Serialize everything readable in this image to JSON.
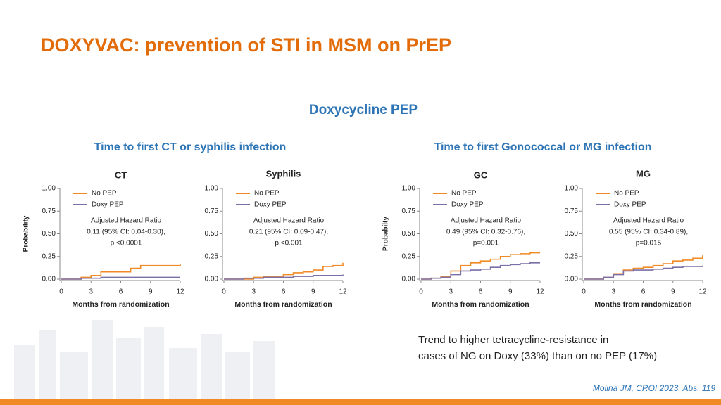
{
  "slide": {
    "title": "DOXYVAC: prevention of STI in MSM on PrEP",
    "subtitle": "Doxycycline PEP",
    "sections": [
      "Time to first CT or syphilis infection",
      "Time to first Gonococcal or MG infection"
    ],
    "note": [
      "Trend to higher tetracycline-resistance in",
      "cases of NG on Doxy (33%) than on no PEP (17%)"
    ],
    "citation": "Molina JM, CROI 2023, Abs. 119"
  },
  "chart_data": [
    {
      "type": "line",
      "step": true,
      "title": "CT",
      "ylabel": "Probability",
      "xlabel": "Months from randomization",
      "annotation": [
        "Adjusted Hazard Ratio",
        "0.11 (95% CI: 0.04-0.30),",
        "p <0.0001"
      ],
      "x": [
        0,
        1,
        2,
        3,
        4,
        5,
        6,
        7,
        8,
        9,
        10,
        11,
        12
      ],
      "series": [
        {
          "name": "No PEP",
          "color": "#f08a24",
          "values": [
            0,
            0,
            0.02,
            0.04,
            0.08,
            0.08,
            0.08,
            0.12,
            0.15,
            0.15,
            0.15,
            0.15,
            0.17
          ]
        },
        {
          "name": "Doxy PEP",
          "color": "#7b6fa8",
          "values": [
            0,
            0,
            0.01,
            0.01,
            0.02,
            0.02,
            0.02,
            0.02,
            0.02,
            0.02,
            0.02,
            0.02,
            0.02
          ]
        }
      ],
      "xlim": [
        0,
        12
      ],
      "xticks": [
        0,
        3,
        6,
        9,
        12
      ],
      "ylim": [
        0,
        1
      ],
      "yticks": [
        {
          "value": 0,
          "label": "0.00"
        },
        {
          "value": 0.25,
          "label": "0.25"
        },
        {
          "value": 0.5,
          "label": "0.50"
        },
        {
          "value": 0.75,
          "label": "0.75"
        },
        {
          "value": 1,
          "label": "1.00"
        }
      ],
      "legend": "upper left"
    },
    {
      "type": "line",
      "step": true,
      "title": "Syphilis",
      "xlabel": "Months from randomization",
      "annotation": [
        "Adjusted Hazard Ratio",
        "0.21 (95% CI: 0.09-0.47),",
        "p <0.001"
      ],
      "x": [
        0,
        1,
        2,
        3,
        4,
        5,
        6,
        7,
        8,
        9,
        10,
        11,
        12
      ],
      "series": [
        {
          "name": "No PEP",
          "color": "#f08a24",
          "values": [
            0,
            0,
            0,
            0.02,
            0.03,
            0.03,
            0.05,
            0.07,
            0.08,
            0.1,
            0.14,
            0.15,
            0.18
          ]
        },
        {
          "name": "Doxy PEP",
          "color": "#7b6fa8",
          "values": [
            0,
            0,
            0.01,
            0.01,
            0.02,
            0.02,
            0.02,
            0.03,
            0.03,
            0.04,
            0.04,
            0.04,
            0.05
          ]
        }
      ],
      "xlim": [
        0,
        12
      ],
      "xticks": [
        0,
        3,
        6,
        9,
        12
      ],
      "ylim": [
        0,
        1
      ],
      "yticks": [
        {
          "value": 0,
          "label": "0.00"
        },
        {
          "value": 0.25,
          "label": "0.25"
        },
        {
          "value": 0.5,
          "label": "0.50"
        },
        {
          "value": 0.75,
          "label": "0.75"
        },
        {
          "value": 1,
          "label": "1.00"
        }
      ],
      "legend": "upper left"
    },
    {
      "type": "line",
      "step": true,
      "title": "GC",
      "ylabel": "Probabilty",
      "xlabel": "Months from randomization",
      "annotation": [
        "Adjusted Hazard Ratio",
        "0.49 (95% CI: 0.32-0.76),",
        "p=0.001"
      ],
      "x": [
        0,
        1,
        2,
        3,
        4,
        5,
        6,
        7,
        8,
        9,
        10,
        11,
        12
      ],
      "series": [
        {
          "name": "No PEP",
          "color": "#f08a24",
          "values": [
            0,
            0.01,
            0.03,
            0.09,
            0.15,
            0.18,
            0.2,
            0.22,
            0.25,
            0.27,
            0.28,
            0.29,
            0.29
          ]
        },
        {
          "name": "Doxy PEP",
          "color": "#7b6fa8",
          "values": [
            0,
            0.01,
            0.02,
            0.05,
            0.09,
            0.1,
            0.11,
            0.13,
            0.15,
            0.16,
            0.17,
            0.18,
            0.18
          ]
        }
      ],
      "xlim": [
        0,
        12
      ],
      "xticks": [
        0,
        3,
        6,
        9,
        12
      ],
      "ylim": [
        0,
        1
      ],
      "yticks": [
        {
          "value": 0,
          "label": "0.00"
        },
        {
          "value": 0.25,
          "label": "0.25"
        },
        {
          "value": 0.5,
          "label": "0.50"
        },
        {
          "value": 0.75,
          "label": "0.75"
        },
        {
          "value": 1,
          "label": "1.00"
        }
      ],
      "legend": "upper left"
    },
    {
      "type": "line",
      "step": true,
      "title": "MG",
      "xlabel": "Months from randomization",
      "annotation": [
        "Adjusted Hazard Ratio",
        "0.55 (95% CI: 0.34-0.89),",
        "p=0.015"
      ],
      "x": [
        0,
        1,
        2,
        3,
        4,
        5,
        6,
        7,
        8,
        9,
        10,
        11,
        12
      ],
      "series": [
        {
          "name": "No PEP",
          "color": "#f08a24",
          "values": [
            0,
            0,
            0.02,
            0.06,
            0.1,
            0.12,
            0.13,
            0.15,
            0.17,
            0.2,
            0.21,
            0.23,
            0.27
          ]
        },
        {
          "name": "Doxy PEP",
          "color": "#7b6fa8",
          "values": [
            0,
            0,
            0.02,
            0.05,
            0.09,
            0.1,
            0.1,
            0.11,
            0.12,
            0.13,
            0.14,
            0.14,
            0.15
          ]
        }
      ],
      "xlim": [
        0,
        12
      ],
      "xticks": [
        0,
        3,
        6,
        9,
        12
      ],
      "ylim": [
        0,
        1
      ],
      "yticks": [
        {
          "value": 0,
          "label": "0.00"
        },
        {
          "value": 0.25,
          "label": "0.25"
        },
        {
          "value": 0.5,
          "label": "0.50"
        },
        {
          "value": 0.75,
          "label": "0.75"
        },
        {
          "value": 1,
          "label": "1.00"
        }
      ],
      "legend": "upper left"
    }
  ]
}
